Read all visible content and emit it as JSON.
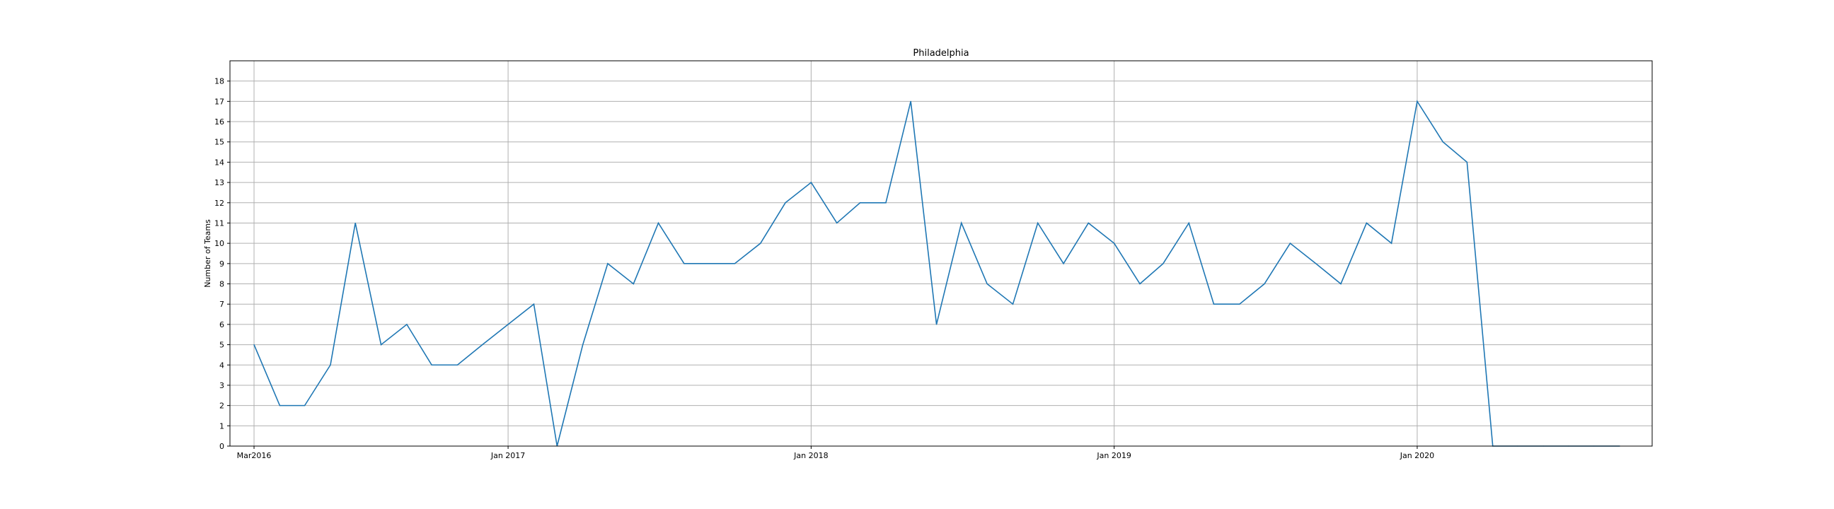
{
  "chart_data": {
    "type": "line",
    "title": "Philadelphia",
    "xlabel": "",
    "ylabel": "Number of Teams",
    "ylim": [
      0,
      19
    ],
    "yticks": [
      0,
      1,
      2,
      3,
      4,
      5,
      6,
      7,
      8,
      9,
      10,
      11,
      12,
      13,
      14,
      15,
      16,
      17,
      18
    ],
    "xlim": [
      "2016-02-01",
      "2020-10-10"
    ],
    "xticks": [
      {
        "date": "2016-03-01",
        "label": "Mar2016"
      },
      {
        "date": "2017-01-01",
        "label": "Jan 2017"
      },
      {
        "date": "2018-01-01",
        "label": "Jan 2018"
      },
      {
        "date": "2019-01-01",
        "label": "Jan 2019"
      },
      {
        "date": "2020-01-01",
        "label": "Jan 2020"
      }
    ],
    "grid": true,
    "color": "#1f77b4",
    "series": [
      {
        "x": [
          "2016-03-01",
          "2016-04-01",
          "2016-05-01",
          "2016-06-01",
          "2016-07-01",
          "2016-08-01",
          "2016-09-01",
          "2016-10-01",
          "2016-11-01",
          "2016-12-01",
          "2017-01-01",
          "2017-02-01",
          "2017-03-01",
          "2017-04-01",
          "2017-05-01",
          "2017-06-01",
          "2017-07-01",
          "2017-08-01",
          "2017-09-01",
          "2017-10-01",
          "2017-11-01",
          "2017-12-01",
          "2018-01-01",
          "2018-02-01",
          "2018-03-01",
          "2018-04-01",
          "2018-05-01",
          "2018-06-01",
          "2018-07-01",
          "2018-08-01",
          "2018-09-01",
          "2018-10-01",
          "2018-11-01",
          "2018-12-01",
          "2019-01-01",
          "2019-02-01",
          "2019-03-01",
          "2019-04-01",
          "2019-05-01",
          "2019-06-01",
          "2019-07-01",
          "2019-08-01",
          "2019-09-01",
          "2019-10-01",
          "2019-11-01",
          "2019-12-01",
          "2020-01-01",
          "2020-02-01",
          "2020-03-01",
          "2020-04-01",
          "2020-05-01",
          "2020-06-01",
          "2020-07-01",
          "2020-08-01",
          "2020-09-01"
        ],
        "y": [
          5,
          2,
          2,
          4,
          11,
          5,
          6,
          4,
          4,
          5,
          6,
          7,
          0,
          5,
          9,
          8,
          11,
          9,
          9,
          9,
          10,
          12,
          13,
          11,
          12,
          12,
          17,
          6,
          11,
          8,
          7,
          11,
          9,
          11,
          10,
          8,
          9,
          11,
          7,
          7,
          8,
          10,
          9,
          8,
          11,
          10,
          17,
          15,
          14,
          0,
          0,
          0,
          0,
          0,
          0
        ]
      }
    ]
  }
}
